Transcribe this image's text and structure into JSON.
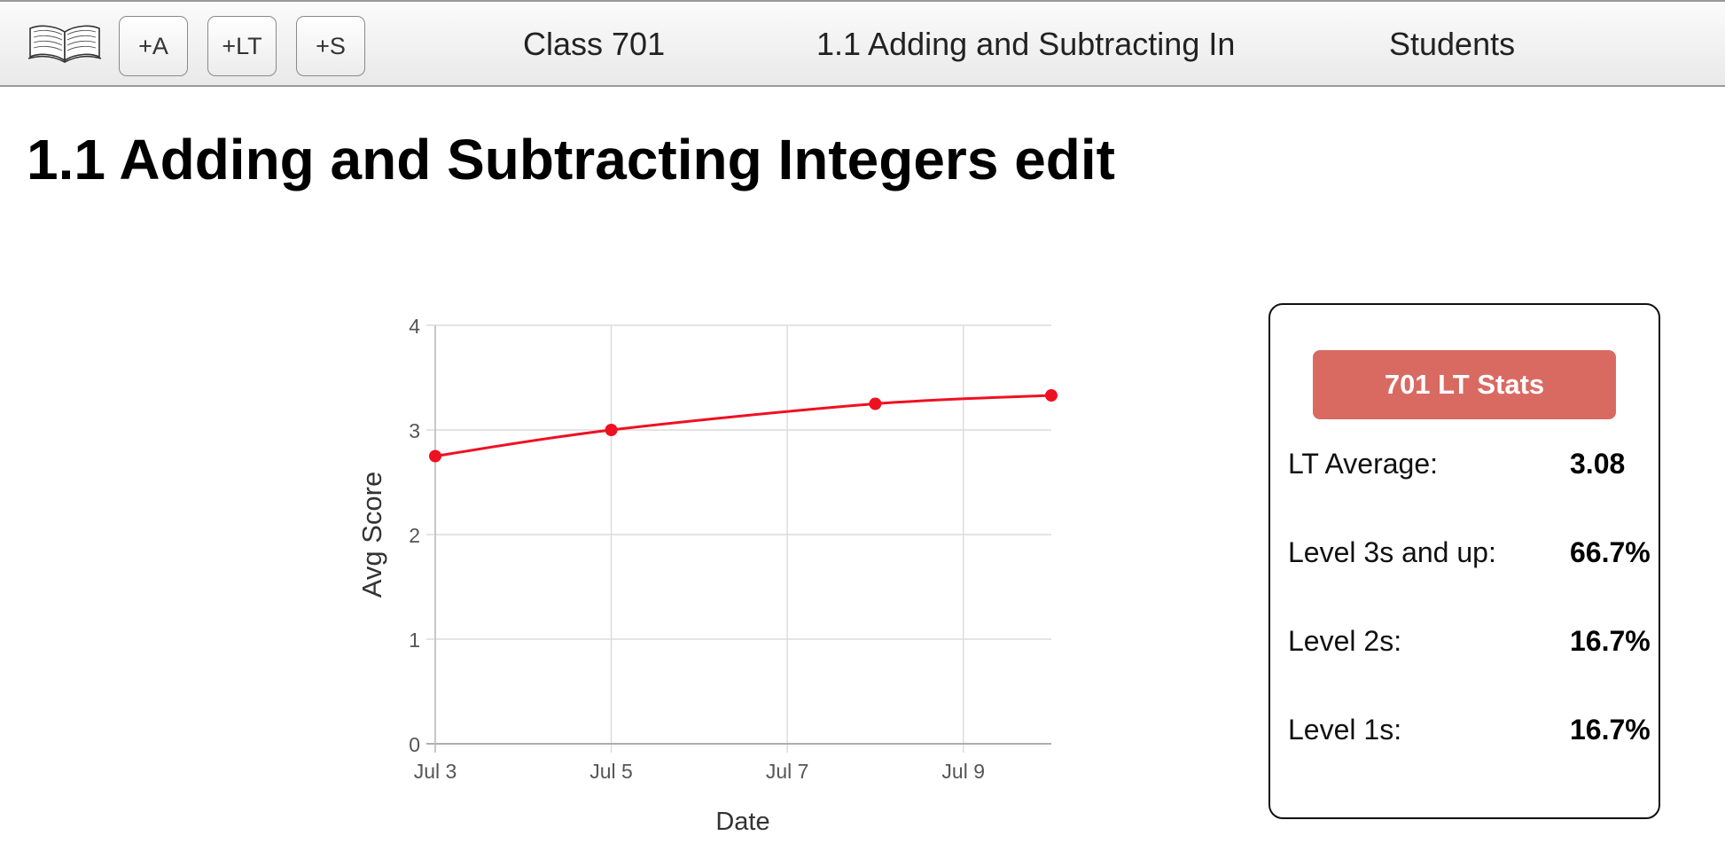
{
  "toolbar": {
    "logo_icon": "open-book-icon",
    "buttons": [
      "+A",
      "+LT",
      "+S"
    ]
  },
  "nav": {
    "class": "Class 701",
    "target": "1.1 Adding and Subtracting In",
    "students": "Students"
  },
  "page": {
    "title": "1.1 Adding and Subtracting Integers",
    "edit": "edit"
  },
  "chart_data": {
    "type": "line",
    "xlabel": "Date",
    "ylabel": "Avg Score",
    "xlim": [
      "2024-07-03",
      "2024-07-10"
    ],
    "ylim": [
      0,
      4
    ],
    "x_ticks": [
      "Jul 3",
      "Jul 5",
      "Jul 7",
      "Jul 9"
    ],
    "y_ticks": [
      0,
      1,
      2,
      3,
      4
    ],
    "grid": true,
    "series_color": "#ee1122",
    "points": [
      {
        "date": "2024-07-03",
        "value": 2.75
      },
      {
        "date": "2024-07-05",
        "value": 3.0
      },
      {
        "date": "2024-07-08",
        "value": 3.25
      },
      {
        "date": "2024-07-10",
        "value": 3.33
      }
    ]
  },
  "stats": {
    "title": "701 LT Stats",
    "title_color": "#d96a62",
    "rows": [
      {
        "label": "LT Average:",
        "value": "3.08"
      },
      {
        "label": "Level 3s and up:",
        "value": "66.7%"
      },
      {
        "label": "Level 2s:",
        "value": "16.7%"
      },
      {
        "label": "Level 1s:",
        "value": "16.7%"
      }
    ]
  }
}
